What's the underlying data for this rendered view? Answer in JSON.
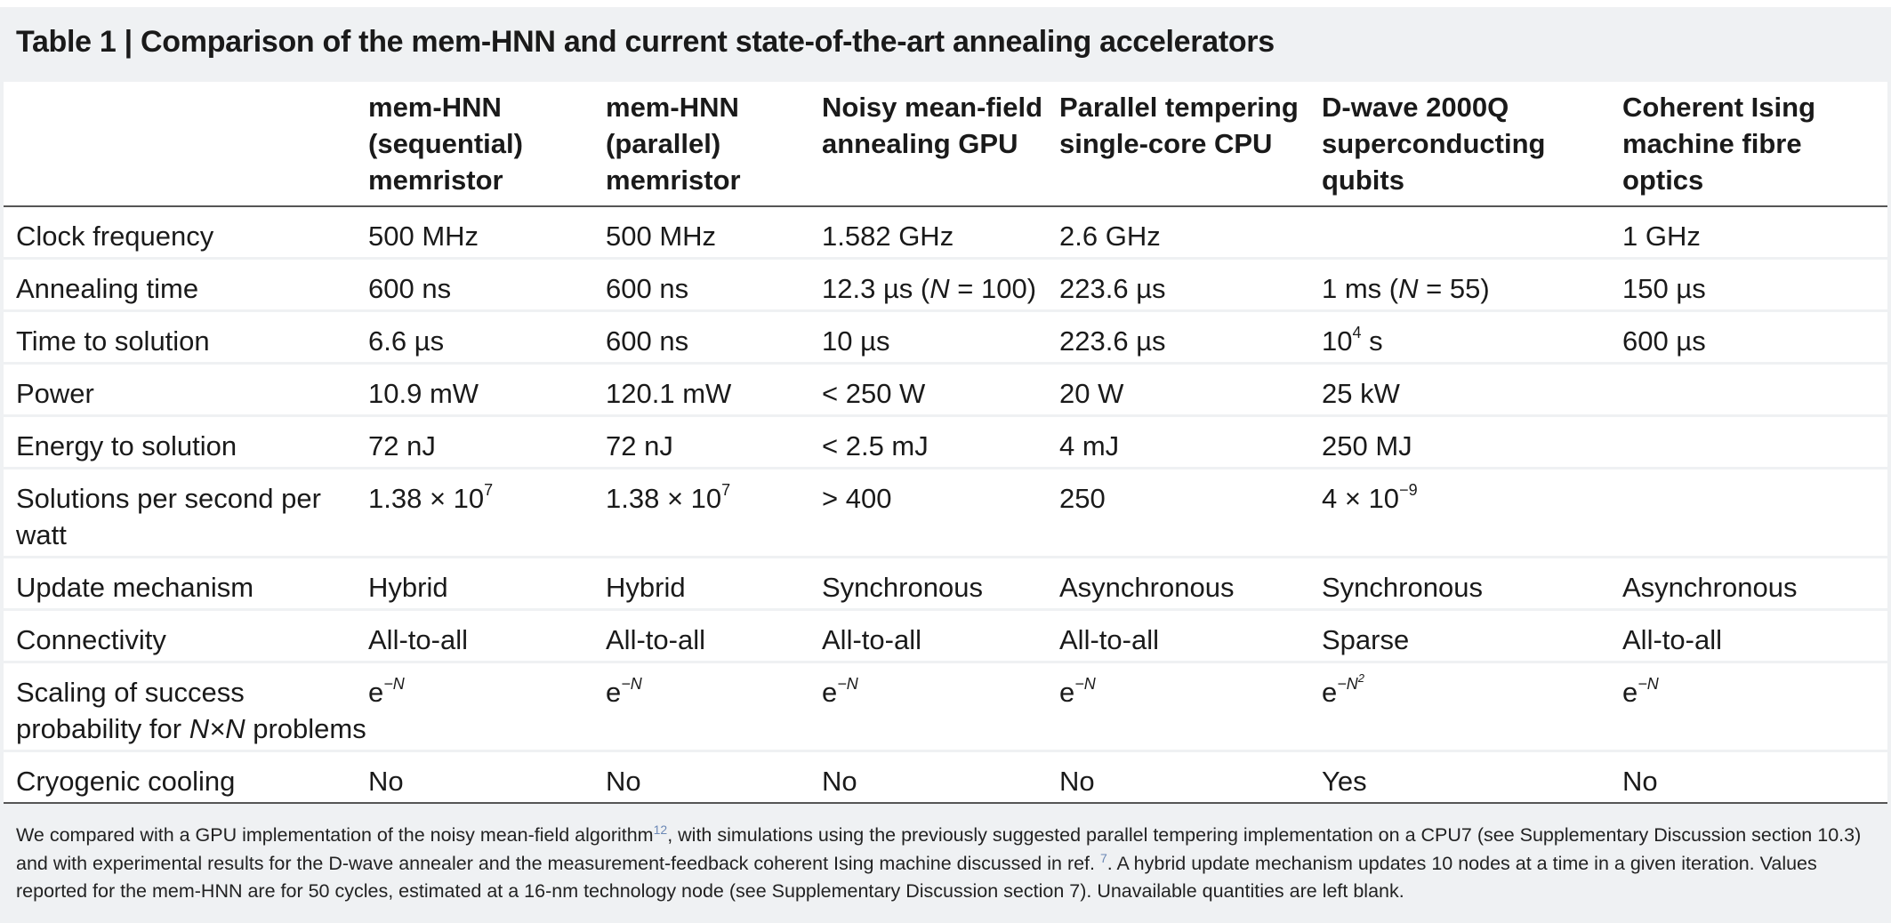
{
  "title": "Table 1 | Comparison of the mem-HNN and current state-of-the-art annealing accelerators",
  "columns": [
    "",
    "mem-HNN (sequential) memristor",
    "mem-HNN (parallel) memristor",
    "Noisy mean-field annealing GPU",
    "Parallel tempering single-core CPU",
    "D-wave 2000Q superconducting qubits",
    "Coherent Ising machine fibre optics"
  ],
  "rows": [
    {
      "label": "Clock frequency",
      "cells": [
        "500 MHz",
        "500 MHz",
        "1.582 GHz",
        "2.6 GHz",
        "",
        "1 GHz"
      ]
    },
    {
      "label": "Annealing time",
      "cells": [
        "600 ns",
        "600 ns",
        "12.3 µs (",
        "223.6 µs",
        "1 ms (",
        "150 µs"
      ]
    },
    {
      "label": "Time to solution",
      "cells": [
        "6.6 µs",
        "600 ns",
        "10 µs",
        "223.6 µs",
        "10",
        "600 µs"
      ]
    },
    {
      "label": "Power",
      "cells": [
        "10.9 mW",
        "120.1 mW",
        "< 250 W",
        "20 W",
        "25 kW",
        ""
      ]
    },
    {
      "label": "Energy to solution",
      "cells": [
        "72 nJ",
        "72 nJ",
        "< 2.5 mJ",
        "4 mJ",
        "250 MJ",
        ""
      ]
    },
    {
      "label": "Solutions per second per watt",
      "cells": [
        "1.38 × 10",
        "1.38 × 10",
        "> 400",
        "250",
        "4 × 10",
        ""
      ]
    },
    {
      "label": "Update mechanism",
      "cells": [
        "Hybrid",
        "Hybrid",
        "Synchronous",
        "Asynchronous",
        "Synchronous",
        "Asynchronous"
      ]
    },
    {
      "label": "Connectivity",
      "cells": [
        "All-to-all",
        "All-to-all",
        "All-to-all",
        "All-to-all",
        "Sparse",
        "All-to-all"
      ]
    },
    {
      "label": "Scaling of success probability for ",
      "cells": [
        "e",
        "e",
        "e",
        "e",
        "e",
        "e"
      ]
    },
    {
      "label": "Cryogenic cooling",
      "cells": [
        "No",
        "No",
        "No",
        "No",
        "Yes",
        "No"
      ]
    }
  ],
  "rich": {
    "n": "N",
    "eq100": " = 100)",
    "eq55": " = 55)",
    "exp4": "4",
    "exp7": "7",
    "expneg9": "−9",
    "expNegN": "−N",
    "expNegN2": "−N",
    "exp2": "2",
    "seconds": " s",
    "nxn": "N×N",
    "problems": " problems"
  },
  "footnote": {
    "p1": "We compared with a GPU implementation of the noisy mean-field algorithm",
    "ref12": "12",
    "p2": ", with simulations using the previously suggested parallel tempering implementation on a CPU7 (see Supplementary Discussion section 10.3) and with experimental results for the D-wave annealer and the measurement-feedback coherent Ising machine discussed in ref. ",
    "ref7": "7",
    "p3": ". A hybrid update mechanism updates 10 nodes at a time in a given iteration. Values reported for the mem-HNN are for 50 cycles, estimated at a 16-nm technology node (see Supplementary Discussion section 7). Unavailable quantities are left blank."
  }
}
